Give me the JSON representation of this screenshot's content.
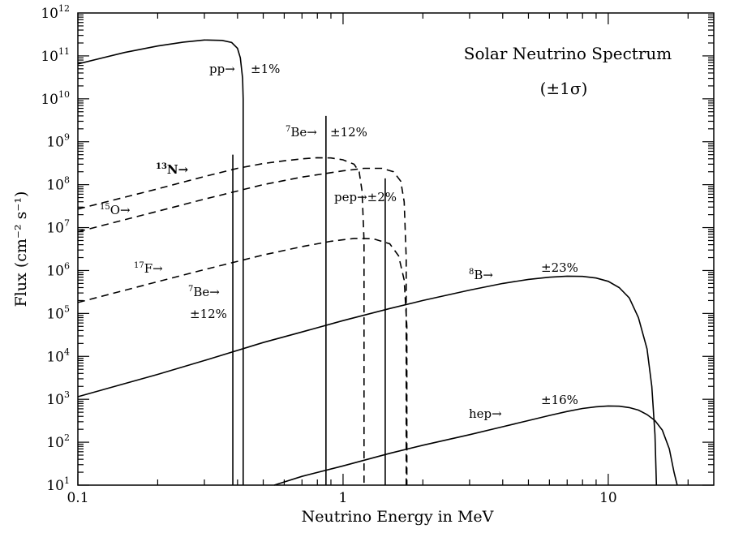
{
  "chart_data": {
    "type": "line",
    "title": "Solar Neutrino Spectrum",
    "subtitle": "(±1σ)",
    "xlabel": "Neutrino Energy in MeV",
    "ylabel": "Flux (cm⁻² s⁻¹)",
    "x_scale": "log",
    "y_scale": "log",
    "xlim": [
      0.1,
      25
    ],
    "ylim": [
      10,
      1000000000000.0
    ],
    "x_ticks": [
      {
        "value": 0.1,
        "label": "0.1"
      },
      {
        "value": 1,
        "label": "1"
      },
      {
        "value": 10,
        "label": "10"
      }
    ],
    "y_ticks": [
      {
        "value": 10,
        "base": "10",
        "exp": "1"
      },
      {
        "value": 100,
        "base": "10",
        "exp": "2"
      },
      {
        "value": 1000,
        "base": "10",
        "exp": "3"
      },
      {
        "value": 10000,
        "base": "10",
        "exp": "4"
      },
      {
        "value": 100000,
        "base": "10",
        "exp": "5"
      },
      {
        "value": 1000000,
        "base": "10",
        "exp": "6"
      },
      {
        "value": 10000000,
        "base": "10",
        "exp": "7"
      },
      {
        "value": 100000000,
        "base": "10",
        "exp": "8"
      },
      {
        "value": 1000000000,
        "base": "10",
        "exp": "9"
      },
      {
        "value": 10000000000,
        "base": "10",
        "exp": "10"
      },
      {
        "value": 100000000000,
        "base": "10",
        "exp": "11"
      },
      {
        "value": 1000000000000,
        "base": "10",
        "exp": "12"
      }
    ],
    "grid": false,
    "series": [
      {
        "key": "pp",
        "style": "solid",
        "points": [
          [
            0.1,
            65000000000.0
          ],
          [
            0.15,
            120000000000.0
          ],
          [
            0.2,
            170000000000.0
          ],
          [
            0.25,
            210000000000.0
          ],
          [
            0.3,
            235000000000.0
          ],
          [
            0.35,
            230000000000.0
          ],
          [
            0.38,
            205000000000.0
          ],
          [
            0.4,
            150000000000.0
          ],
          [
            0.41,
            90000000000.0
          ],
          [
            0.418,
            30000000000.0
          ],
          [
            0.42,
            10000000000.0
          ],
          [
            0.42,
            10
          ]
        ]
      },
      {
        "key": "N13",
        "style": "dashed",
        "points": [
          [
            0.1,
            27000000.0
          ],
          [
            0.2,
            80000000.0
          ],
          [
            0.3,
            155000000.0
          ],
          [
            0.4,
            240000000.0
          ],
          [
            0.5,
            310000000.0
          ],
          [
            0.6,
            360000000.0
          ],
          [
            0.7,
            400000000.0
          ],
          [
            0.8,
            425000000.0
          ],
          [
            0.9,
            420000000.0
          ],
          [
            1.0,
            380000000.0
          ],
          [
            1.1,
            300000000.0
          ],
          [
            1.15,
            200000000.0
          ],
          [
            1.18,
            70000000.0
          ],
          [
            1.2,
            5000000.0
          ],
          [
            1.2,
            10
          ]
        ]
      },
      {
        "key": "O15",
        "style": "dashed",
        "points": [
          [
            0.1,
            8000000.0
          ],
          [
            0.2,
            24000000.0
          ],
          [
            0.3,
            46000000.0
          ],
          [
            0.5,
            100000000.0
          ],
          [
            0.7,
            150000000.0
          ],
          [
            1.0,
            210000000.0
          ],
          [
            1.2,
            240000000.0
          ],
          [
            1.4,
            240000000.0
          ],
          [
            1.55,
            200000000.0
          ],
          [
            1.65,
            120000000.0
          ],
          [
            1.7,
            40000000.0
          ],
          [
            1.73,
            2000000.0
          ],
          [
            1.73,
            10
          ]
        ]
      },
      {
        "key": "F17",
        "style": "dashed",
        "points": [
          [
            0.1,
            180000.0
          ],
          [
            0.2,
            550000.0
          ],
          [
            0.3,
            1050000.0
          ],
          [
            0.5,
            2300000.0
          ],
          [
            0.7,
            3600000.0
          ],
          [
            0.9,
            4800000.0
          ],
          [
            1.1,
            5600000.0
          ],
          [
            1.3,
            5500000.0
          ],
          [
            1.5,
            4200000.0
          ],
          [
            1.62,
            2200000.0
          ],
          [
            1.7,
            600000.0
          ],
          [
            1.74,
            50000.0
          ],
          [
            1.74,
            10
          ]
        ]
      },
      {
        "key": "B8",
        "style": "solid",
        "points": [
          [
            0.1,
            1150.0
          ],
          [
            0.2,
            3800.0
          ],
          [
            0.3,
            8000.0
          ],
          [
            0.5,
            21000.0
          ],
          [
            0.7,
            37000.0
          ],
          [
            1,
            68000.0
          ],
          [
            1.5,
            130000.0
          ],
          [
            2,
            200000.0
          ],
          [
            3,
            350000.0
          ],
          [
            4,
            500000.0
          ],
          [
            5,
            620000.0
          ],
          [
            6,
            700000.0
          ],
          [
            7,
            740000.0
          ],
          [
            8,
            730000.0
          ],
          [
            9,
            670000.0
          ],
          [
            10,
            560000.0
          ],
          [
            11,
            400000.0
          ],
          [
            12,
            230000.0
          ],
          [
            13,
            80000.0
          ],
          [
            14,
            15000.0
          ],
          [
            14.6,
            2000.0
          ],
          [
            15.0,
            150
          ],
          [
            15.2,
            10
          ]
        ]
      },
      {
        "key": "hep",
        "style": "solid",
        "points": [
          [
            0.55,
            10
          ],
          [
            0.7,
            16
          ],
          [
            1,
            28
          ],
          [
            1.5,
            55
          ],
          [
            2,
            85
          ],
          [
            3,
            150
          ],
          [
            4,
            230
          ],
          [
            5,
            320
          ],
          [
            6,
            420
          ],
          [
            7,
            520
          ],
          [
            8,
            610
          ],
          [
            9,
            670
          ],
          [
            10,
            700
          ],
          [
            11,
            690
          ],
          [
            12,
            640
          ],
          [
            13,
            560
          ],
          [
            14,
            440
          ],
          [
            15,
            320
          ],
          [
            16,
            190
          ],
          [
            17,
            70
          ],
          [
            17.7,
            20
          ],
          [
            18.2,
            10
          ]
        ]
      }
    ],
    "lines": [
      {
        "key": "Be7_low",
        "x": 0.384,
        "top": 500000000.0
      },
      {
        "key": "Be7_high",
        "x": 0.862,
        "top": 4000000000.0
      },
      {
        "key": "pep",
        "x": 1.442,
        "top": 140000000.0
      }
    ],
    "annotations": {
      "title": "Solar Neutrino Spectrum",
      "subtitle": "(±1σ)",
      "pp": "pp→",
      "pp_unc": "±1%",
      "be7_high": "Be→",
      "be7_high_unc": "±12%",
      "n13": "N→",
      "o15": "O→",
      "pep": "pep→±2%",
      "f17": "F→",
      "be7_low": "Be→",
      "be7_low_unc": "±12%",
      "b8": "B→",
      "b8_unc": "±23%",
      "hep": "hep→",
      "hep_unc": "±16%",
      "sup_7": "7",
      "sup_13": "13",
      "sup_15": "15",
      "sup_17": "17",
      "sup_8": "8"
    }
  }
}
